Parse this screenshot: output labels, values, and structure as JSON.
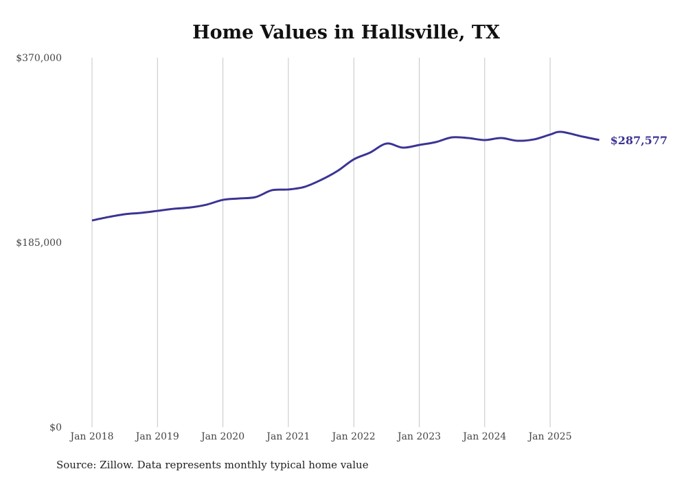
{
  "chart_data": {
    "type": "line",
    "title": "Home Values in Hallsville, TX",
    "xlabel": "",
    "ylabel": "",
    "ylim": [
      0,
      370000
    ],
    "yticks": [
      0,
      185000,
      370000
    ],
    "ytick_labels": [
      "$0",
      "$185,000",
      "$370,000"
    ],
    "xtick_labels": [
      "Jan 2018",
      "Jan 2019",
      "Jan 2020",
      "Jan 2021",
      "Jan 2022",
      "Jan 2023",
      "Jan 2024",
      "Jan 2025"
    ],
    "grid": "vertical",
    "line_color": "#3b3494",
    "end_label": "$287,577",
    "source": "Source: Zillow. Data represents monthly typical home value",
    "series": [
      {
        "name": "Typical home value",
        "x": [
          "2018-01",
          "2018-04",
          "2018-07",
          "2018-10",
          "2019-01",
          "2019-04",
          "2019-07",
          "2019-10",
          "2020-01",
          "2020-04",
          "2020-07",
          "2020-10",
          "2021-01",
          "2021-04",
          "2021-07",
          "2021-10",
          "2022-01",
          "2022-04",
          "2022-07",
          "2022-10",
          "2023-01",
          "2023-04",
          "2023-07",
          "2023-10",
          "2024-01",
          "2024-04",
          "2024-07",
          "2024-10",
          "2025-01",
          "2025-03",
          "2025-07",
          "2025-10"
        ],
        "values": [
          207000,
          210400,
          213200,
          214600,
          216600,
          218700,
          220000,
          222800,
          227600,
          229000,
          230400,
          237300,
          238000,
          240700,
          247600,
          256500,
          268200,
          275000,
          284000,
          279900,
          282600,
          285400,
          290200,
          289500,
          287500,
          289500,
          286800,
          288100,
          293000,
          295700,
          290900,
          287577
        ]
      }
    ]
  }
}
